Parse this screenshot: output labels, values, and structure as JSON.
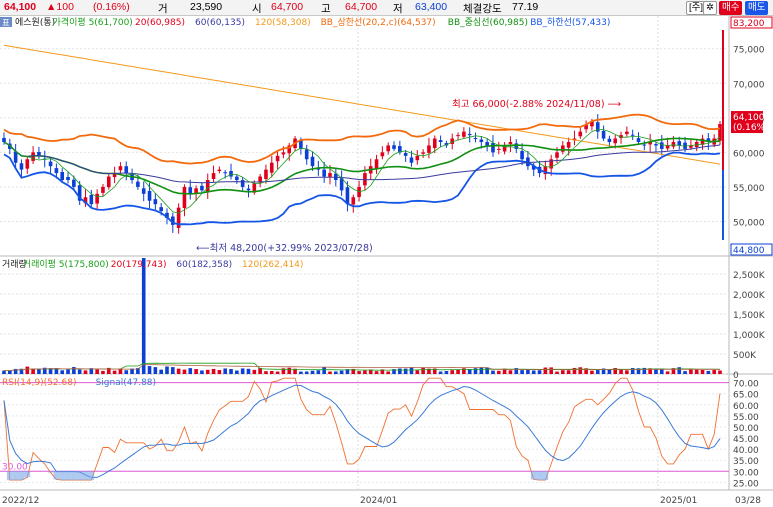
{
  "topbar": {
    "price": "64,100",
    "change": "▲100",
    "change_pct": "(0.16%)",
    "volume_label": "거",
    "volume_value": "23,590",
    "open_label": "시",
    "open_value": "64,700",
    "high_label": "고",
    "high_value": "64,700",
    "low_label": "저",
    "low_value": "63,400",
    "strength_label": "체결강도",
    "strength_value": "77.19",
    "btn_week": "[주]",
    "btn_gear": "✲",
    "btn_buy": "매수",
    "btn_sell": "매도"
  },
  "colors": {
    "up": "#e0001b",
    "down": "#0b3fd6",
    "ma5": "#1a9e1a",
    "ma20": "#e0001b",
    "ma60": "#3a3aa0",
    "ma120": "#f29a1c",
    "bb_upper": "#f26a0c",
    "bb_mid": "#109010",
    "bb_lower": "#1455e6",
    "rsi": "#f07030",
    "signal": "#3a7ad8",
    "guide": "#e05ad8"
  },
  "chart_data": [
    {
      "type": "candlestick",
      "panel": "price",
      "legend": [
        "에스원(통)",
        "가격이평 5(61,700)",
        "20(60,985)",
        "60(60,135)",
        "120(58,308)",
        "BB_상한선(20,2,c)(64,537)",
        "BB_중심선(60,985)",
        "BB_하한선(57,433)"
      ],
      "legend_tag": "표",
      "y_ticks": [
        75000,
        70000,
        65000,
        60000,
        55000,
        50000
      ],
      "y_tick_labels": [
        "75,000",
        "70,000",
        "65,000",
        "60,000",
        "55,000",
        "50,000"
      ],
      "ylim": [
        45000,
        78000
      ],
      "max_label": "83,200",
      "min_label": "44,800",
      "current_price_label": "64,100",
      "current_pct_label": "(0.16%)",
      "annotation_high": "최고 66,000(-2.88% 2024/11/08)",
      "annotation_low": "최저 48,200(+32.99% 2023/07/28)",
      "close_series": [
        61500,
        60500,
        58500,
        57500,
        59000,
        60000,
        59500,
        59000,
        58000,
        57000,
        56000,
        56000,
        55000,
        53000,
        53500,
        52500,
        54000,
        55000,
        56500,
        57000,
        58000,
        57000,
        56000,
        55000,
        54000,
        53000,
        52500,
        51500,
        50500,
        49500,
        52000,
        55000,
        54000,
        54800,
        54500,
        56000,
        57000,
        57500,
        57000,
        56500,
        56000,
        55000,
        54500,
        55500,
        56500,
        57500,
        58500,
        59500,
        60000,
        61000,
        62000,
        60500,
        59000,
        58000,
        57500,
        56500,
        57000,
        56000,
        54500,
        52500,
        53500,
        55000,
        57000,
        58000,
        59000,
        60000,
        61000,
        60500,
        60000,
        59500,
        58500,
        59500,
        60000,
        61000,
        62000,
        61500,
        61000,
        62000,
        62500,
        63000,
        62500,
        62000,
        61500,
        61000,
        60000,
        60500,
        61000,
        61500,
        60500,
        59000,
        58000,
        57500,
        57000,
        58000,
        59000,
        60000,
        61000,
        61500,
        62000,
        63000,
        64000,
        64500,
        63000,
        62000,
        61500,
        62000,
        62500,
        63000,
        62500,
        61500,
        61000,
        61500,
        61000,
        60500,
        61000,
        61500,
        61000,
        60500,
        61000,
        61500,
        62000,
        61500,
        62000,
        64100
      ]
    },
    {
      "type": "bar",
      "panel": "volume",
      "legend": [
        "거래량",
        "거래이평 5(175,800)",
        "20(179,743)",
        "60(182,358)",
        "120(262,414)"
      ],
      "y_ticks": [
        2500000,
        2000000,
        1500000,
        1000000,
        500000,
        0
      ],
      "y_tick_labels": [
        "2,500K",
        "2,000K",
        "1,500K",
        "1,000K",
        "500K",
        "0"
      ],
      "ylim": [
        0,
        2900000
      ],
      "peak_value": 2900000
    },
    {
      "type": "line",
      "panel": "rsi",
      "legend": [
        "RSI(14,9)(52.68)",
        "Signal(47.88)"
      ],
      "y_ticks": [
        70,
        65,
        60,
        55,
        50,
        45,
        40,
        35,
        30,
        25
      ],
      "y_tick_labels": [
        "70.00",
        "65.00",
        "60.00",
        "55.00",
        "50.00",
        "45.00",
        "40.00",
        "35.00",
        "30.00",
        "25.00"
      ],
      "ylim": [
        22,
        73
      ],
      "guide_low_label": "30.00",
      "upper_guide": 70,
      "lower_guide": 30
    }
  ],
  "x_axis": {
    "ticks": [
      "2022/12",
      "2024/01",
      "2025/01"
    ],
    "end_label": "03/28"
  }
}
